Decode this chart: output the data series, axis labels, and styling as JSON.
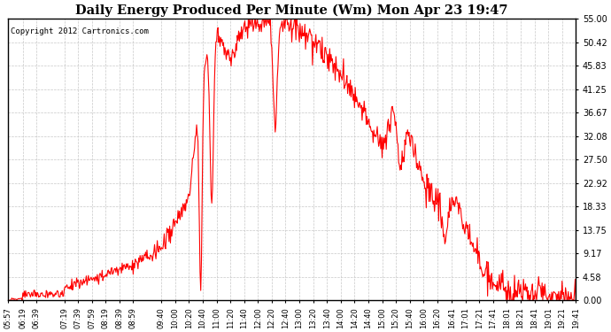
{
  "title": "Daily Energy Produced Per Minute (Wm) Mon Apr 23 19:47",
  "copyright": "Copyright 2012 Cartronics.com",
  "line_color": "#FF0000",
  "background_color": "#FFFFFF",
  "plot_bg_color": "#FFFFFF",
  "grid_color": "#C8C8C8",
  "ylim": [
    0,
    55.0
  ],
  "yticks": [
    0.0,
    4.58,
    9.17,
    13.75,
    18.33,
    22.92,
    27.5,
    32.08,
    36.67,
    41.25,
    45.83,
    50.42,
    55.0
  ],
  "x_tick_labels": [
    "05:57",
    "06:19",
    "06:39",
    "07:19",
    "07:39",
    "07:59",
    "08:19",
    "08:39",
    "08:59",
    "09:40",
    "10:00",
    "10:20",
    "10:40",
    "11:00",
    "11:20",
    "11:40",
    "12:00",
    "12:20",
    "12:40",
    "13:00",
    "13:20",
    "13:40",
    "14:00",
    "14:20",
    "14:40",
    "15:00",
    "15:20",
    "15:40",
    "16:00",
    "16:20",
    "16:41",
    "17:01",
    "17:21",
    "17:41",
    "18:01",
    "18:21",
    "18:41",
    "19:01",
    "19:21",
    "19:41"
  ]
}
